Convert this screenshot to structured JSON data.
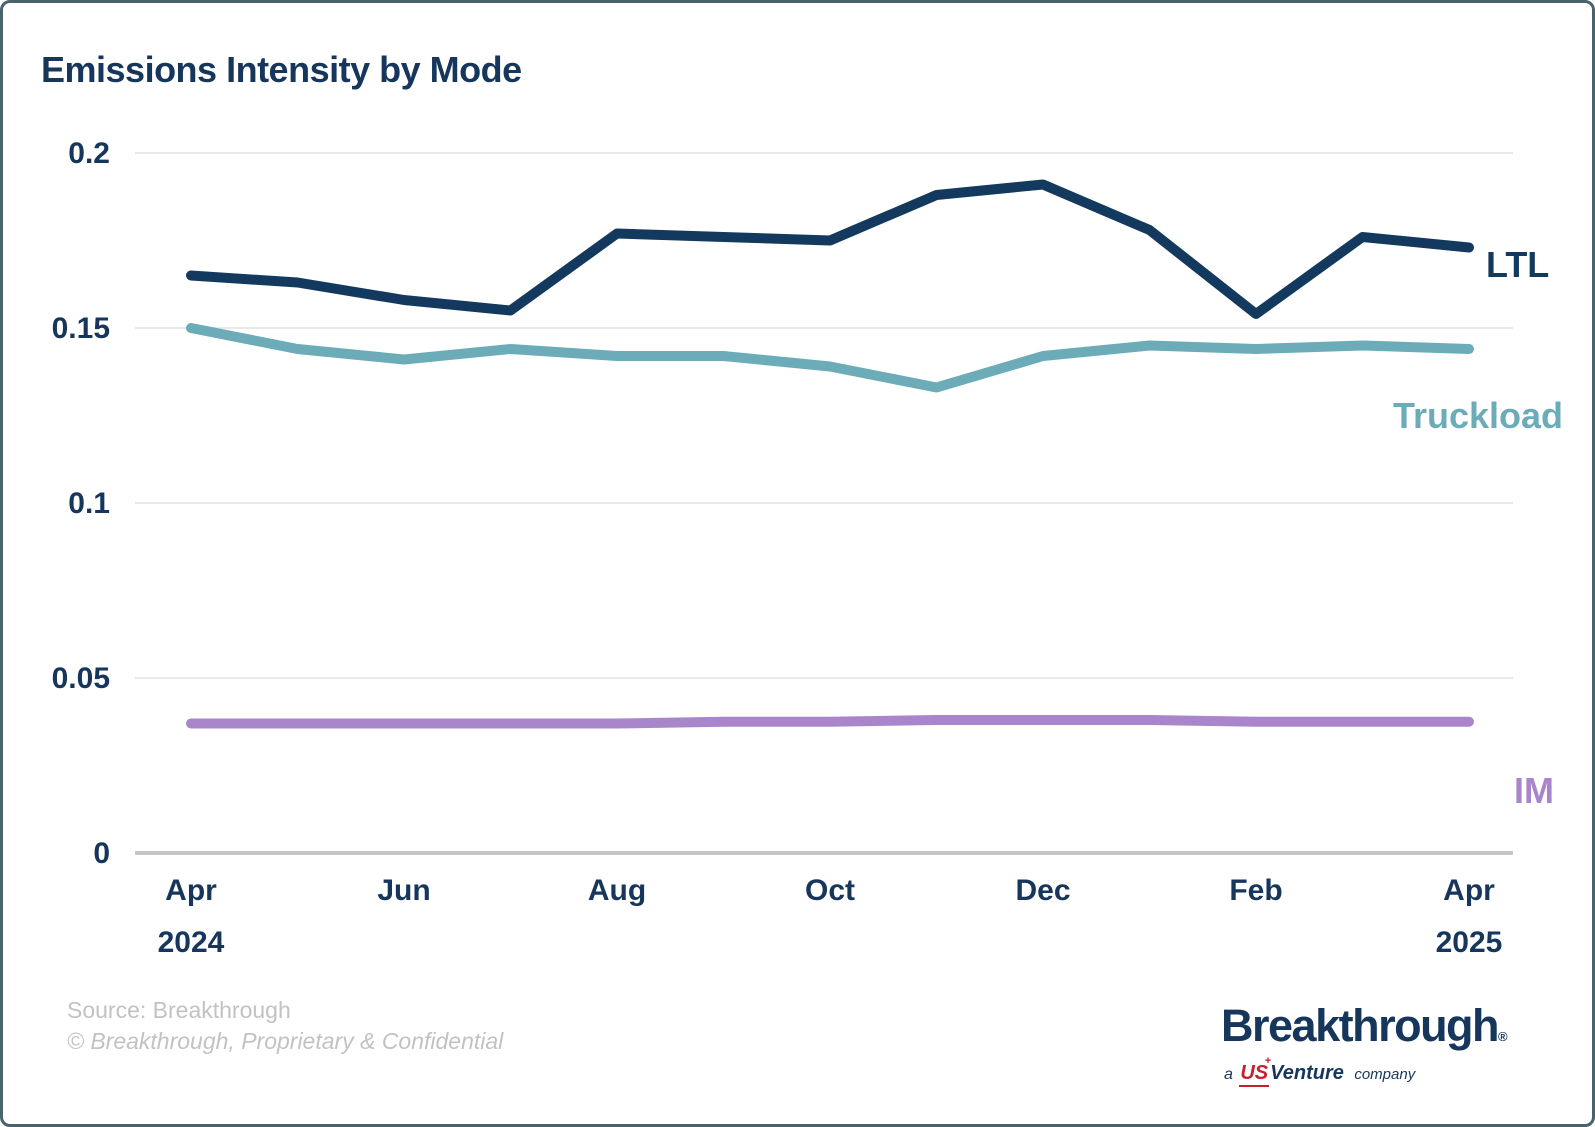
{
  "title": "Emissions Intensity by Mode",
  "chart_data": {
    "type": "line",
    "title": "Emissions Intensity by Mode",
    "x": [
      "Apr 2024",
      "May 2024",
      "Jun 2024",
      "Jul 2024",
      "Aug 2024",
      "Sep 2024",
      "Oct 2024",
      "Nov 2024",
      "Dec 2024",
      "Jan 2025",
      "Feb 2025",
      "Mar 2025",
      "Apr 2025"
    ],
    "x_ticks": [
      {
        "label": "Apr",
        "sub": "2024",
        "index": 0
      },
      {
        "label": "Jun",
        "sub": "",
        "index": 2
      },
      {
        "label": "Aug",
        "sub": "",
        "index": 4
      },
      {
        "label": "Oct",
        "sub": "",
        "index": 6
      },
      {
        "label": "Dec",
        "sub": "",
        "index": 8
      },
      {
        "label": "Feb",
        "sub": "",
        "index": 10
      },
      {
        "label": "Apr",
        "sub": "2025",
        "index": 12
      }
    ],
    "y_ticks": [
      {
        "label": "0",
        "value": 0
      },
      {
        "label": "0.05",
        "value": 0.05
      },
      {
        "label": "0.1",
        "value": 0.1
      },
      {
        "label": "0.15",
        "value": 0.15
      },
      {
        "label": "0.2",
        "value": 0.2
      }
    ],
    "ylim": [
      0,
      0.2
    ],
    "grid": "horizontal",
    "legend_position": "end-of-line-labels",
    "series": [
      {
        "name": "LTL",
        "color": "#133A5E",
        "values": [
          0.165,
          0.163,
          0.158,
          0.155,
          0.177,
          0.176,
          0.175,
          0.188,
          0.191,
          0.178,
          0.154,
          0.176,
          0.173
        ]
      },
      {
        "name": "Truckload",
        "color": "#6BACB8",
        "values": [
          0.15,
          0.144,
          0.141,
          0.144,
          0.142,
          0.142,
          0.139,
          0.133,
          0.142,
          0.145,
          0.144,
          0.145,
          0.144
        ]
      },
      {
        "name": "IM",
        "color": "#A985CB",
        "values": [
          0.037,
          0.037,
          0.037,
          0.037,
          0.037,
          0.0375,
          0.0375,
          0.038,
          0.038,
          0.038,
          0.0375,
          0.0375,
          0.0375
        ]
      }
    ]
  },
  "footer": {
    "source": "Source: Breakthrough",
    "copyright": "© Breakthrough, Proprietary & Confidential"
  },
  "logo": {
    "brand": "Breakthrough",
    "registered": "®",
    "tagline_a": "a",
    "tagline_us": "US",
    "tagline_plus": "+",
    "tagline_venture": "Venture",
    "tagline_company": "company"
  },
  "colors": {
    "title_text": "#16365C",
    "axis_text": "#16365C",
    "gridline": "#E9E9E9",
    "axis_line": "#C6C6C6",
    "border": "#4A626C",
    "footer_text": "#C2C2C6",
    "logo_red": "#C4212E",
    "ltl": "#133A5E",
    "truckload": "#6BACB8",
    "im": "#A985CB"
  }
}
